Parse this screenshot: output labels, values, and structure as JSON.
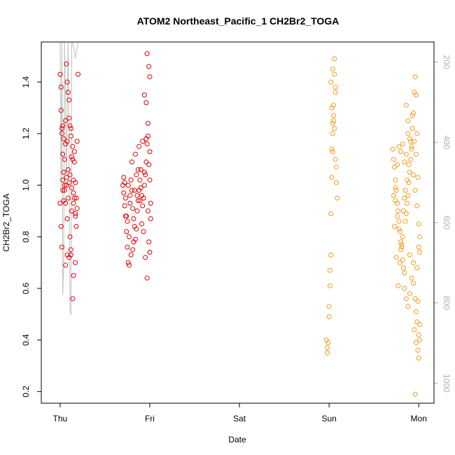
{
  "chart_data": {
    "type": "scatter",
    "title": "ATOM2 Northeast_Pacific_1 CH2Br2_TOGA",
    "xlabel": "Date",
    "ylabel": "CH2Br2_TOGA",
    "x_ticks": [
      "Thu",
      "Fri",
      "Sat",
      "Sun",
      "Mon"
    ],
    "xlim": [
      -0.21,
      4.17
    ],
    "ylim": [
      0.155,
      1.555
    ],
    "y_ticks": [
      0.2,
      0.4,
      0.6,
      0.8,
      1.0,
      1.2,
      1.4
    ],
    "y2_ticks": [
      200,
      400,
      600,
      800,
      1000
    ],
    "y2_lim": [
      1050,
      150
    ],
    "y2_color": "#b0b0b0",
    "grid": false,
    "altitude_color": "#c0c0c0",
    "altitude_path": [
      [
        0.0,
        150
      ],
      [
        0.01,
        520
      ],
      [
        0.02,
        150
      ],
      [
        0.03,
        780
      ],
      [
        0.04,
        700
      ],
      [
        0.05,
        150
      ],
      [
        0.07,
        480
      ],
      [
        0.08,
        310
      ],
      [
        0.09,
        150
      ],
      [
        0.11,
        820
      ],
      [
        0.12,
        830
      ],
      [
        0.13,
        150
      ],
      [
        0.15,
        160
      ],
      [
        0.17,
        190
      ],
      [
        0.2,
        150
      ],
      [
        1.3,
        150
      ],
      [
        2.9,
        150
      ]
    ],
    "series": [
      {
        "color": "#e00000",
        "points": [
          [
            0.0,
            1.43
          ],
          [
            0.01,
            1.29
          ],
          [
            0.02,
            1.2
          ],
          [
            0.03,
            1.12
          ],
          [
            0.04,
            1.05
          ],
          [
            0.05,
            0.98
          ],
          [
            0.06,
            0.93
          ],
          [
            0.07,
            1.0
          ],
          [
            0.08,
            0.87
          ],
          [
            0.09,
            0.95
          ],
          [
            0.1,
            1.01
          ],
          [
            0.11,
            0.8
          ],
          [
            0.12,
            0.73
          ],
          [
            0.13,
            0.9
          ],
          [
            0.14,
            1.15
          ],
          [
            0.15,
            1.02
          ],
          [
            0.16,
            0.95
          ],
          [
            0.17,
            0.89
          ],
          [
            0.18,
            0.84
          ],
          [
            0.2,
            1.43
          ],
          [
            0.01,
            1.38
          ],
          [
            0.02,
            1.22
          ],
          [
            0.03,
            1.23
          ],
          [
            0.05,
            1.1
          ],
          [
            0.06,
            1.16
          ],
          [
            0.07,
            1.47
          ],
          [
            0.08,
            1.4
          ],
          [
            0.09,
            1.36
          ],
          [
            0.1,
            1.26
          ],
          [
            0.11,
            1.23
          ],
          [
            0.12,
            1.22
          ],
          [
            0.13,
            1.11
          ],
          [
            0.14,
            1.1
          ],
          [
            0.15,
            0.97
          ],
          [
            0.16,
            1.13
          ],
          [
            0.17,
            1.01
          ],
          [
            0.18,
            0.95
          ],
          [
            0.19,
            0.91
          ],
          [
            0.0,
            0.93
          ],
          [
            0.01,
            0.84
          ],
          [
            0.02,
            0.76
          ],
          [
            0.03,
            0.98
          ],
          [
            0.04,
            0.94
          ],
          [
            0.06,
            0.69
          ],
          [
            0.08,
            0.73
          ],
          [
            0.1,
            0.72
          ],
          [
            0.12,
            0.75
          ],
          [
            0.14,
            0.56
          ],
          [
            0.15,
            0.65
          ],
          [
            0.17,
            0.7
          ],
          [
            0.19,
            1.17
          ],
          [
            0.03,
            1.02
          ],
          [
            0.05,
            1.0
          ],
          [
            0.07,
            1.03
          ],
          [
            0.09,
            1.06
          ],
          [
            0.11,
            1.04
          ],
          [
            0.13,
            0.99
          ],
          [
            0.15,
            0.93
          ],
          [
            0.17,
            0.88
          ],
          [
            0.04,
            1.18
          ],
          [
            0.08,
            1.17
          ],
          [
            0.12,
            1.19
          ],
          [
            0.16,
            1.09
          ],
          [
            0.1,
            1.33
          ],
          [
            0.06,
            1.25
          ],
          [
            0.7,
            1.0
          ],
          [
            0.71,
            0.97
          ],
          [
            0.72,
            0.92
          ],
          [
            0.73,
            0.88
          ],
          [
            0.74,
            0.82
          ],
          [
            0.75,
            0.76
          ],
          [
            0.76,
            0.7
          ],
          [
            0.77,
            0.69
          ],
          [
            0.78,
            0.96
          ],
          [
            0.79,
            1.02
          ],
          [
            0.8,
            0.98
          ],
          [
            0.81,
            0.91
          ],
          [
            0.82,
            0.87
          ],
          [
            0.83,
            0.84
          ],
          [
            0.84,
            0.79
          ],
          [
            0.85,
            0.83
          ],
          [
            0.86,
            0.9
          ],
          [
            0.87,
            0.94
          ],
          [
            0.88,
            0.98
          ],
          [
            0.89,
            1.02
          ],
          [
            0.9,
            1.06
          ],
          [
            0.91,
            0.96
          ],
          [
            0.92,
            0.92
          ],
          [
            0.93,
            0.95
          ],
          [
            0.94,
            1.0
          ],
          [
            0.95,
            1.04
          ],
          [
            0.96,
            1.09
          ],
          [
            0.97,
            1.16
          ],
          [
            0.98,
            1.19
          ],
          [
            0.99,
            1.08
          ],
          [
            1.0,
            1.02
          ],
          [
            0.71,
            1.03
          ],
          [
            0.73,
            0.95
          ],
          [
            0.75,
            0.86
          ],
          [
            0.77,
            0.8
          ],
          [
            0.79,
            0.73
          ],
          [
            0.81,
            0.75
          ],
          [
            0.83,
            0.98
          ],
          [
            0.85,
            1.04
          ],
          [
            0.87,
            1.06
          ],
          [
            0.89,
            0.94
          ],
          [
            0.91,
            0.85
          ],
          [
            0.93,
            0.82
          ],
          [
            0.95,
            0.72
          ],
          [
            0.97,
            0.64
          ],
          [
            0.99,
            0.78
          ],
          [
            1.0,
            0.74
          ],
          [
            0.72,
            1.01
          ],
          [
            0.76,
            1.0
          ],
          [
            0.8,
            1.09
          ],
          [
            0.84,
            1.12
          ],
          [
            0.88,
            1.15
          ],
          [
            0.92,
            1.17
          ],
          [
            0.96,
            1.18
          ],
          [
            1.0,
            1.13
          ],
          [
            0.94,
            1.35
          ],
          [
            0.96,
            1.32
          ],
          [
            0.97,
            1.51
          ],
          [
            0.98,
            1.24
          ],
          [
            0.99,
            1.46
          ],
          [
            1.0,
            1.42
          ],
          [
            1.01,
            0.87
          ],
          [
            1.01,
            0.93
          ],
          [
            0.98,
            0.9
          ],
          [
            0.94,
            1.05
          ],
          [
            0.86,
            0.96
          ],
          [
            0.78,
            0.93
          ],
          [
            0.74,
            0.88
          ],
          [
            0.82,
            0.78
          ],
          [
            0.9,
            0.99
          ]
        ]
      },
      {
        "color": "#f59a1b",
        "points": [
          [
            2.97,
            0.4
          ],
          [
            2.98,
            0.37
          ],
          [
            2.98,
            0.35
          ],
          [
            2.99,
            0.39
          ],
          [
            3.0,
            0.49
          ],
          [
            3.0,
            0.53
          ],
          [
            3.01,
            0.61
          ],
          [
            3.01,
            0.67
          ],
          [
            3.02,
            0.73
          ],
          [
            3.02,
            0.89
          ],
          [
            3.03,
            1.03
          ],
          [
            3.03,
            1.14
          ],
          [
            3.04,
            1.2
          ],
          [
            3.04,
            1.24
          ],
          [
            3.05,
            1.27
          ],
          [
            3.05,
            1.31
          ],
          [
            3.06,
            1.43
          ],
          [
            3.06,
            1.49
          ],
          [
            3.07,
            1.38
          ],
          [
            3.07,
            1.36
          ],
          [
            3.08,
            1.07
          ],
          [
            3.08,
            1.01
          ],
          [
            3.09,
            0.95
          ],
          [
            3.03,
            1.3
          ],
          [
            3.05,
            1.25
          ],
          [
            3.04,
            1.13
          ],
          [
            3.06,
            1.22
          ],
          [
            3.07,
            1.1
          ],
          [
            3.02,
            1.4
          ],
          [
            3.04,
            1.45
          ],
          [
            3.71,
            1.14
          ],
          [
            3.72,
            1.1
          ],
          [
            3.73,
            1.07
          ],
          [
            3.74,
            1.02
          ],
          [
            3.75,
            0.98
          ],
          [
            3.76,
            0.93
          ],
          [
            3.77,
            0.9
          ],
          [
            3.78,
            0.86
          ],
          [
            3.79,
            0.82
          ],
          [
            3.8,
            0.78
          ],
          [
            3.81,
            0.76
          ],
          [
            3.82,
            0.71
          ],
          [
            3.83,
            0.68
          ],
          [
            3.84,
            0.66
          ],
          [
            3.85,
            0.86
          ],
          [
            3.86,
            0.89
          ],
          [
            3.87,
            0.93
          ],
          [
            3.88,
            0.96
          ],
          [
            3.89,
            1.01
          ],
          [
            3.9,
            1.05
          ],
          [
            3.91,
            1.1
          ],
          [
            3.92,
            1.15
          ],
          [
            3.93,
            1.22
          ],
          [
            3.94,
            1.28
          ],
          [
            3.95,
            1.36
          ],
          [
            3.96,
            1.42
          ],
          [
            3.97,
            1.35
          ],
          [
            3.98,
            1.2
          ],
          [
            3.99,
            1.03
          ],
          [
            4.0,
            0.85
          ],
          [
            3.72,
            0.96
          ],
          [
            3.74,
            0.94
          ],
          [
            3.76,
            0.88
          ],
          [
            3.78,
            0.83
          ],
          [
            3.8,
            0.75
          ],
          [
            3.82,
            0.8
          ],
          [
            3.84,
            0.95
          ],
          [
            3.86,
            1.12
          ],
          [
            3.88,
            1.2
          ],
          [
            3.9,
            1.18
          ],
          [
            3.92,
            1.14
          ],
          [
            3.94,
            1.04
          ],
          [
            3.96,
            0.98
          ],
          [
            3.98,
            0.92
          ],
          [
            4.0,
            0.76
          ],
          [
            3.84,
            0.6
          ],
          [
            3.86,
            0.56
          ],
          [
            3.88,
            0.53
          ],
          [
            3.9,
            0.58
          ],
          [
            3.92,
            0.64
          ],
          [
            3.94,
            0.7
          ],
          [
            3.96,
            0.56
          ],
          [
            3.98,
            0.47
          ],
          [
            4.0,
            0.42
          ],
          [
            4.0,
            0.33
          ],
          [
            3.97,
            0.39
          ],
          [
            3.99,
            0.36
          ],
          [
            4.01,
            0.46
          ],
          [
            4.01,
            0.4
          ],
          [
            3.96,
            0.19
          ],
          [
            3.95,
            0.44
          ],
          [
            3.97,
            0.51
          ],
          [
            3.99,
            0.55
          ],
          [
            4.01,
            0.74
          ],
          [
            4.01,
            0.8
          ],
          [
            3.98,
            0.68
          ],
          [
            3.94,
            0.62
          ],
          [
            3.9,
            0.73
          ],
          [
            3.88,
            1.25
          ],
          [
            3.86,
            1.31
          ],
          [
            3.84,
            1.09
          ],
          [
            3.82,
            1.16
          ],
          [
            3.8,
            1.13
          ],
          [
            3.78,
            1.15
          ],
          [
            3.76,
            1.08
          ],
          [
            3.74,
            0.99
          ],
          [
            3.73,
            0.84
          ],
          [
            3.75,
            0.72
          ],
          [
            3.77,
            0.61
          ],
          [
            3.79,
            0.7
          ],
          [
            3.81,
            0.77
          ],
          [
            3.83,
            0.9
          ],
          [
            3.85,
            0.98
          ],
          [
            3.87,
            1.02
          ],
          [
            3.89,
            1.08
          ],
          [
            3.91,
            1.17
          ],
          [
            3.93,
            1.27
          ],
          [
            3.95,
            1.17
          ],
          [
            3.97,
            1.12
          ]
        ]
      }
    ]
  }
}
